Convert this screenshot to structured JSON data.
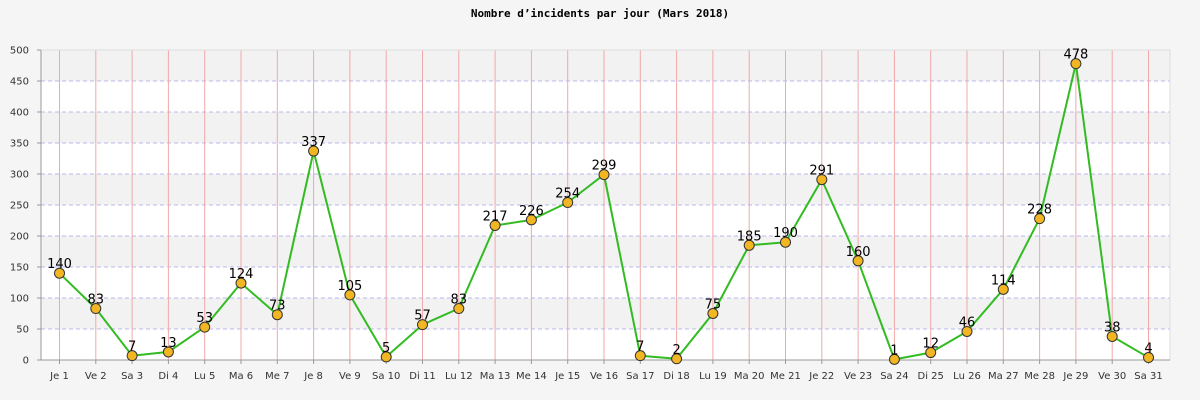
{
  "chart_data": {
    "type": "line",
    "title": "Nombre d’incidents par jour (Mars 2018)",
    "categories": [
      "Je 1",
      "Ve 2",
      "Sa 3",
      "Di 4",
      "Lu 5",
      "Ma 6",
      "Me 7",
      "Je 8",
      "Ve 9",
      "Sa 10",
      "Di 11",
      "Lu 12",
      "Ma 13",
      "Me 14",
      "Je 15",
      "Ve 16",
      "Sa 17",
      "Di 18",
      "Lu 19",
      "Ma 20",
      "Me 21",
      "Je 22",
      "Ve 23",
      "Sa 24",
      "Di 25",
      "Lu 26",
      "Ma 27",
      "Me 28",
      "Je 29",
      "Ve 30",
      "Sa 31"
    ],
    "values": [
      140,
      83,
      7,
      13,
      53,
      124,
      73,
      337,
      105,
      5,
      57,
      83,
      217,
      226,
      254,
      299,
      7,
      2,
      75,
      185,
      190,
      291,
      160,
      1,
      12,
      46,
      114,
      228,
      478,
      38,
      4
    ],
    "ylim": [
      0,
      500
    ],
    "yticks": [
      0,
      50,
      100,
      150,
      200,
      250,
      300,
      350,
      400,
      450,
      500
    ],
    "grid": true,
    "colors": {
      "line": "#33bb22",
      "marker_fill": "#f2b623",
      "marker_stroke": "#333333",
      "band_alt": "#f2f2f2",
      "band_base": "#ffffff",
      "hgrid": "#b8b8ee",
      "vgrid": "#f0a8a8"
    }
  }
}
